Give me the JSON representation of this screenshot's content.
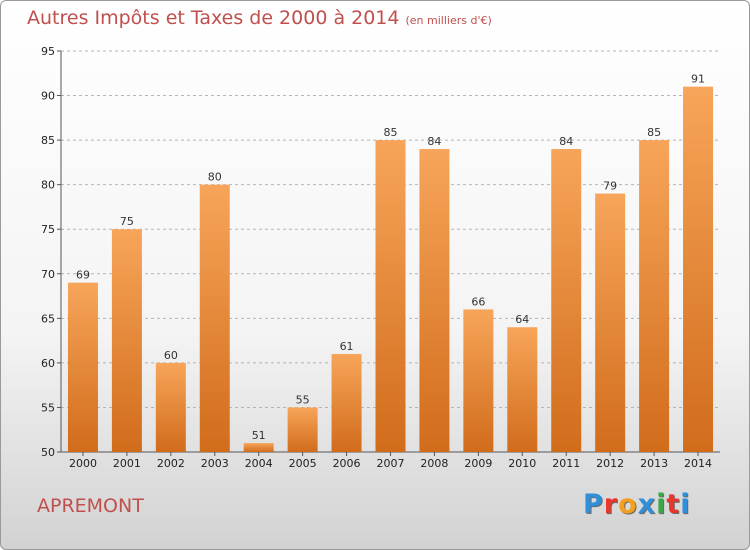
{
  "title": "Autres Impôts et Taxes de 2000 à 2014",
  "subtitle": "(en milliers d'€)",
  "city": "APREMONT",
  "logo": {
    "letters": [
      "P",
      "r",
      "o",
      "x",
      "i",
      "t",
      "i"
    ],
    "colors": [
      "#2f8fd8",
      "#e8362d",
      "#f2a01e",
      "#2f8fd8",
      "#3aa84a",
      "#e8362d",
      "#2f8fd8"
    ]
  },
  "colors": {
    "bar_light": "#f7a55a",
    "bar_dark": "#d16c1b",
    "title": "#c0504d"
  },
  "chart_data": {
    "type": "bar",
    "categories": [
      "2000",
      "2001",
      "2002",
      "2003",
      "2004",
      "2005",
      "2006",
      "2007",
      "2008",
      "2009",
      "2010",
      "2011",
      "2012",
      "2013",
      "2014"
    ],
    "values": [
      69,
      75,
      60,
      80,
      51,
      55,
      61,
      85,
      84,
      66,
      64,
      84,
      79,
      85,
      91
    ],
    "ylim": [
      50,
      95
    ],
    "yticks": [
      50,
      55,
      60,
      65,
      70,
      75,
      80,
      85,
      90,
      95
    ],
    "grid": "horizontal dashed",
    "data_labels": true
  }
}
